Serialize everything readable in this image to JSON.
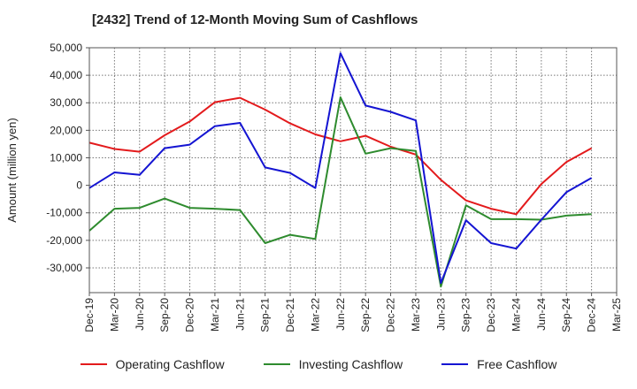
{
  "chart_data": {
    "type": "line",
    "title": "[2432]  Trend of 12-Month Moving Sum of Cashflows",
    "ylabel": "Amount (million yen)",
    "xlabel": "",
    "ylim": [
      -39000,
      50000
    ],
    "yticks": [
      -30000,
      -20000,
      -10000,
      0,
      10000,
      20000,
      30000,
      40000,
      50000
    ],
    "ytick_labels": [
      "-30,000",
      "-20,000",
      "-10,000",
      "0",
      "10,000",
      "20,000",
      "30,000",
      "40,000",
      "50,000"
    ],
    "categories": [
      "Dec-19",
      "Mar-20",
      "Jun-20",
      "Sep-20",
      "Dec-20",
      "Mar-21",
      "Jun-21",
      "Sep-21",
      "Dec-21",
      "Mar-22",
      "Jun-22",
      "Sep-22",
      "Dec-22",
      "Mar-23",
      "Jun-23",
      "Sep-23",
      "Dec-23",
      "Mar-24",
      "Jun-24",
      "Sep-24",
      "Dec-24",
      "Mar-25"
    ],
    "grid": true,
    "legend_position": "bottom",
    "series": [
      {
        "name": "Operating Cashflow",
        "color": "#e31a1c",
        "values": [
          15500,
          13200,
          12200,
          18200,
          23200,
          30200,
          31800,
          27500,
          22500,
          18500,
          16000,
          18000,
          14000,
          11200,
          2000,
          -5500,
          -8500,
          -10500,
          500,
          8500,
          13500,
          null
        ]
      },
      {
        "name": "Investing Cashflow",
        "color": "#2e8b2e",
        "values": [
          -16500,
          -8500,
          -8200,
          -4800,
          -8200,
          -8500,
          -9000,
          -21000,
          -18000,
          -19500,
          32000,
          11500,
          13500,
          12500,
          -36800,
          -7300,
          -12300,
          -12300,
          -12500,
          -11000,
          -10500,
          null
        ]
      },
      {
        "name": "Free Cashflow",
        "color": "#1414d2",
        "values": [
          -1000,
          4700,
          3800,
          13500,
          14800,
          21500,
          22700,
          6500,
          4500,
          -1000,
          48000,
          29000,
          26700,
          23600,
          -35500,
          -12700,
          -21000,
          -23000,
          -12500,
          -2500,
          2700,
          null
        ]
      }
    ]
  }
}
